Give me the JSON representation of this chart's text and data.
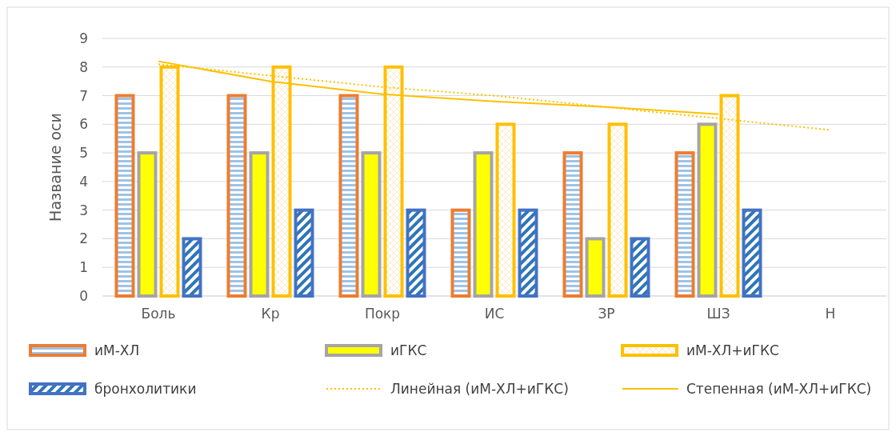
{
  "chart_data": {
    "type": "bar",
    "ylabel": "Название оси",
    "categories": [
      "Боль",
      "Кр",
      "Покр",
      "ИС",
      "ЗР",
      "ШЗ",
      "Н"
    ],
    "ylim": [
      0,
      9
    ],
    "yticks": [
      0,
      1,
      2,
      3,
      4,
      5,
      6,
      7,
      8,
      9
    ],
    "grid": "y",
    "legend": "bottom",
    "series": [
      {
        "name": "иМ-ХЛ",
        "color": "#ed7d31",
        "values": [
          7,
          7,
          7,
          3,
          5,
          5,
          null
        ]
      },
      {
        "name": "иГКС",
        "color": "#a5a5a5",
        "values": [
          5,
          5,
          5,
          5,
          2,
          6,
          null
        ]
      },
      {
        "name": "иМ-ХЛ+иГКС",
        "color": "#ffc000",
        "values": [
          8,
          8,
          8,
          6,
          6,
          7,
          null
        ]
      },
      {
        "name": "бронхолитики",
        "color": "#4472c4",
        "values": [
          2,
          3,
          3,
          3,
          2,
          3,
          null
        ]
      },
      {
        "name": "Линейная (иМ-ХЛ+иГКС)",
        "type": "line",
        "line_style": "dotted",
        "marker": "none",
        "color": "#ffc000",
        "values": [
          8.1,
          7.7,
          7.3,
          7.0,
          6.6,
          6.2,
          5.8
        ]
      },
      {
        "name": "Степенная (иМ-ХЛ+иГКС)",
        "type": "line",
        "line_style": "solid",
        "marker": "none",
        "color": "#ffc000",
        "values": [
          8.2,
          7.5,
          7.05,
          6.8,
          6.6,
          6.35,
          null
        ]
      }
    ]
  }
}
